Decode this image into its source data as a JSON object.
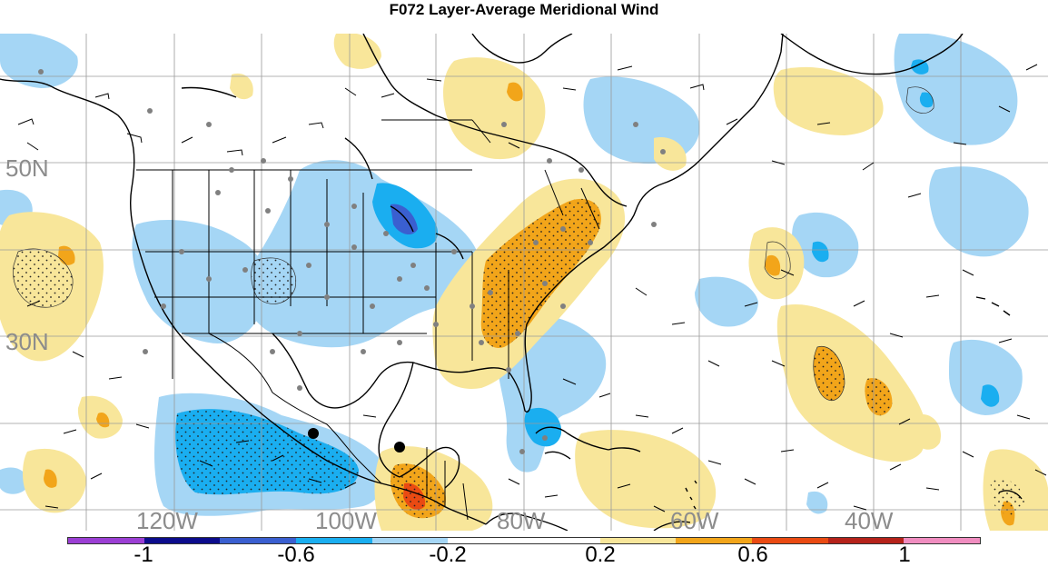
{
  "title": "F072 Layer-Average Meridional Wind",
  "map": {
    "region": "North America / North Atlantic",
    "projection": "cylindrical equidistant",
    "lat_labels": [
      "50N",
      "30N"
    ],
    "lon_labels": [
      "120W",
      "100W",
      "80W",
      "60W",
      "40W"
    ],
    "grid_label_color": "#8c8c8c",
    "features": [
      "coastlines",
      "state borders",
      "country borders",
      "lat-lon grid",
      "wind barbs",
      "station dots",
      "stippled shading"
    ]
  },
  "colorbar": {
    "colors": [
      "#9b3fd4",
      "#0c0c8c",
      "#3a5fd0",
      "#1aaef0",
      "#a5d6f5",
      "#ffffff",
      "#ffffff",
      "#f8e69a",
      "#f2a51a",
      "#ea4a12",
      "#b5221a",
      "#f08dc0"
    ],
    "labels": [
      "-1",
      "-0.6",
      "-0.2",
      "0.2",
      "0.6",
      "1"
    ]
  }
}
